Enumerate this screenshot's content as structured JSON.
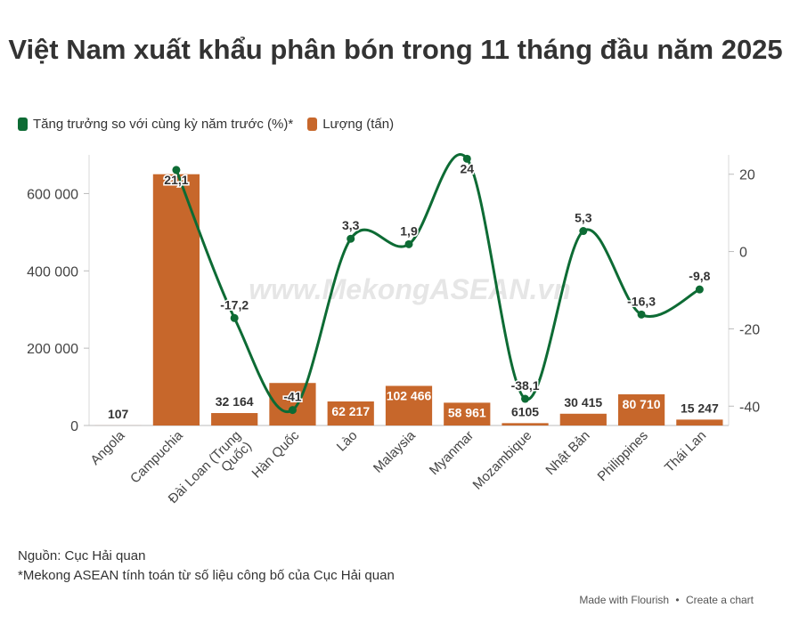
{
  "header": {
    "title": "Việt Nam xuất khẩu phân bón trong 11 tháng đầu năm 2025"
  },
  "legend": [
    {
      "label": "Tăng trưởng so với cùng kỳ năm trước (%)*",
      "color": "#0d6b34"
    },
    {
      "label": "Lượng (tấn)",
      "color": "#c7672b"
    }
  ],
  "watermark": "www.MekongASEAN.vn",
  "footer": {
    "source": "Nguồn: Cục Hải quan",
    "note": "*Mekong ASEAN tính toán từ số liệu công bố của Cục Hải quan",
    "made_with": "Made with Flourish",
    "separator": "•",
    "create_chart": "Create a chart"
  },
  "chart_data": {
    "type": "bar",
    "categories": [
      "Angola",
      "Campuchia",
      "Đài Loan (Trung Quốc)",
      "Hàn Quốc",
      "Lào",
      "Malaysia",
      "Myanmar",
      "Mozambique",
      "Nhật Bản",
      "Philippines",
      "Thái Lan"
    ],
    "series": [
      {
        "name": "Lượng (tấn)",
        "type": "bar",
        "axis": "left",
        "color": "#c7672b",
        "values": [
          107,
          650000,
          32164,
          110000,
          62217,
          102466,
          58961,
          6105,
          30415,
          80710,
          15247
        ],
        "labels": [
          "107",
          "",
          "32 164",
          "",
          "62 217",
          "102 466",
          "58 961",
          "6105",
          "30 415",
          "80 710",
          "15 247"
        ]
      },
      {
        "name": "Tăng trưởng so với cùng kỳ năm trước (%)*",
        "type": "line",
        "axis": "right",
        "color": "#0d6b34",
        "values": [
          null,
          21.1,
          -17.2,
          -41,
          3.3,
          1.9,
          24,
          -38.1,
          5.3,
          -16.3,
          -9.8
        ],
        "labels": [
          "",
          "21,1",
          "-17,2",
          "-41",
          "3,3",
          "1,9",
          "24",
          "-38,1",
          "5,3",
          "-16,3",
          "-9,8"
        ]
      }
    ],
    "y_left": {
      "range": [
        0,
        700000
      ],
      "ticks": [
        0,
        200000,
        400000,
        600000
      ],
      "tick_labels": [
        "0",
        "200 000",
        "400 000",
        "600 000"
      ]
    },
    "y_right": {
      "range": [
        -45,
        25
      ],
      "ticks": [
        -40,
        -20,
        0,
        20
      ],
      "tick_labels": [
        "-40",
        "-20",
        "0",
        "20"
      ]
    },
    "grid": false,
    "legend_position": "top-left"
  }
}
